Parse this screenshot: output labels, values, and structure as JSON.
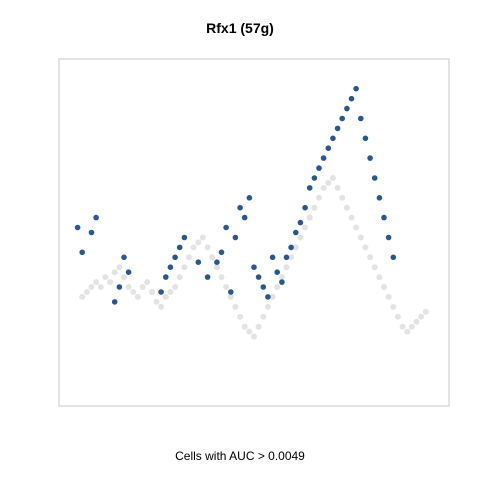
{
  "chart_data": {
    "type": "scatter",
    "title": "Rfx1 (57g)",
    "xlabel": "Cells with AUC > 0.0049",
    "ylabel": "",
    "grid": false,
    "legend": "none",
    "axes_visible": false,
    "colors": {
      "background_cells": "#d9d9d9",
      "active_cells": "#1f4e8a",
      "frame": "#c8c8c8"
    },
    "series": [
      {
        "role": "background",
        "x": [
          25,
          30,
          35,
          40,
          45,
          50,
          55,
          60,
          65,
          70,
          75,
          80,
          85,
          90,
          95,
          100,
          105,
          110,
          115,
          120,
          125,
          130,
          135,
          140,
          145,
          150,
          155,
          160,
          165,
          170,
          175,
          180,
          185,
          190,
          195,
          200,
          205,
          210,
          215,
          220,
          225,
          230,
          235,
          240,
          245,
          250,
          255,
          260,
          265,
          270,
          275,
          280,
          285,
          290,
          295,
          300,
          305,
          310,
          315,
          320,
          325,
          330,
          335,
          340,
          345,
          350,
          355,
          360,
          365,
          370,
          375,
          380,
          385,
          390,
          395
        ],
        "y": [
          240,
          235,
          230,
          225,
          230,
          220,
          225,
          215,
          210,
          220,
          230,
          235,
          240,
          230,
          225,
          235,
          245,
          250,
          240,
          235,
          230,
          220,
          210,
          200,
          190,
          185,
          180,
          190,
          200,
          210,
          220,
          230,
          240,
          250,
          260,
          270,
          275,
          280,
          270,
          260,
          250,
          240,
          230,
          220,
          210,
          200,
          190,
          180,
          170,
          160,
          150,
          140,
          130,
          125,
          120,
          130,
          140,
          150,
          160,
          170,
          180,
          190,
          200,
          210,
          220,
          230,
          240,
          250,
          260,
          270,
          275,
          270,
          265,
          260,
          255
        ]
      },
      {
        "role": "active",
        "x": [
          20,
          25,
          35,
          40,
          60,
          65,
          70,
          75,
          110,
          115,
          120,
          125,
          130,
          135,
          150,
          160,
          170,
          175,
          180,
          185,
          190,
          195,
          200,
          205,
          210,
          215,
          220,
          225,
          230,
          235,
          240,
          245,
          250,
          255,
          260,
          265,
          270,
          275,
          280,
          285,
          290,
          295,
          300,
          305,
          310,
          315,
          320,
          325,
          330,
          335,
          340,
          345,
          350,
          355,
          360
        ],
        "y": [
          170,
          195,
          175,
          160,
          245,
          230,
          200,
          215,
          235,
          220,
          210,
          200,
          190,
          180,
          205,
          220,
          205,
          195,
          170,
          235,
          180,
          150,
          160,
          140,
          210,
          220,
          230,
          240,
          200,
          215,
          225,
          200,
          190,
          175,
          165,
          150,
          130,
          120,
          110,
          100,
          90,
          80,
          70,
          60,
          50,
          40,
          30,
          60,
          80,
          100,
          120,
          140,
          160,
          180,
          200
        ]
      }
    ]
  }
}
